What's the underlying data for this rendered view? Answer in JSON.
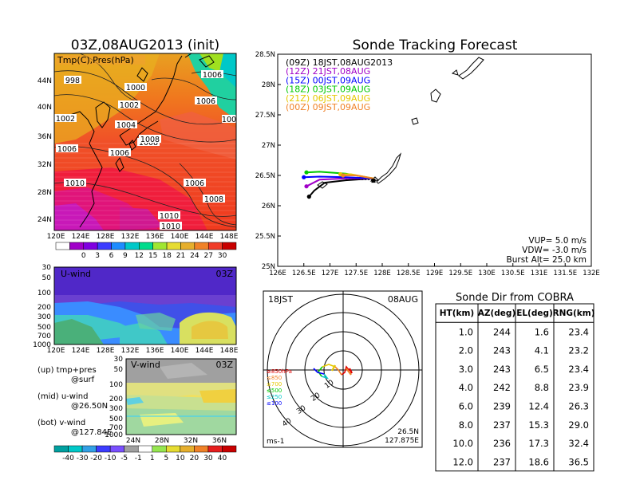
{
  "titles": {
    "left": "03Z,08AUG2013 (init)",
    "right": "Sonde Tracking Forecast"
  },
  "colors": {
    "track_09z": "#000000",
    "track_12z": "#a000c8",
    "track_15z": "#0000ff",
    "track_18z": "#00c800",
    "track_21z": "#e6c800",
    "track_00z": "#f08228",
    "land": "#000000"
  },
  "panel_map": {
    "label": "Tmp(C),Pres(hPa)",
    "lon_ticks": [
      "120E",
      "124E",
      "128E",
      "132E",
      "136E",
      "140E",
      "144E",
      "148E"
    ],
    "lat_ticks": [
      "44N",
      "40N",
      "36N",
      "32N",
      "28N",
      "24N"
    ],
    "isobar_labels": [
      "998",
      "1000",
      "1002",
      "1004",
      "1006",
      "1008",
      "1010",
      "1006",
      "1006",
      "100",
      "1002",
      "1006",
      "1008",
      "1010",
      "1006",
      "1008",
      "1010",
      "1010"
    ],
    "colorbar_ticks": [
      "0",
      "3",
      "6",
      "9",
      "12",
      "15",
      "18",
      "21",
      "24",
      "27",
      "30"
    ]
  },
  "panel_u": {
    "label": "U-wind",
    "time": "03Z",
    "y_ticks": [
      "30",
      "50",
      "100",
      "200",
      "300",
      "500",
      "700",
      "1000"
    ],
    "lon_ticks": [
      "120E",
      "124E",
      "128E",
      "132E",
      "136E",
      "140E",
      "144E",
      "148E"
    ]
  },
  "panel_v": {
    "label": "V-wind",
    "time": "03Z",
    "y_ticks": [
      "30",
      "50",
      "100",
      "200",
      "300",
      "500",
      "700",
      "1000"
    ],
    "lat_ticks": [
      "24N",
      "28N",
      "32N",
      "36N"
    ],
    "colorbar_ticks": [
      "-40",
      "-30",
      "-20",
      "-10",
      "-5",
      "-1",
      "1",
      "5",
      "10",
      "20",
      "30",
      "40"
    ]
  },
  "legend_left": {
    "line1a": "(up) tmp+pres",
    "line1b": "@surf",
    "line2a": "(mid) u-wind",
    "line2b": "@26.50N",
    "line3a": "(bot) v-wind",
    "line3b": "@127.84E"
  },
  "chart_data": {
    "type": "line",
    "title": "Sonde Tracking Forecast",
    "xlim": [
      126,
      132
    ],
    "ylim": [
      25,
      28.5
    ],
    "x_ticks": [
      "126E",
      "126.5E",
      "127E",
      "127.5E",
      "128E",
      "128.5E",
      "129E",
      "129.5E",
      "130E",
      "130.5E",
      "131E",
      "131.5E",
      "132E"
    ],
    "y_ticks": [
      "28.5N",
      "28N",
      "27.5N",
      "27N",
      "26.5N",
      "26N",
      "25.5N",
      "25N"
    ],
    "series": [
      {
        "name": "(09Z)  18JST,08AUG2013",
        "color": "#000000",
        "points": [
          [
            127.84,
            26.45
          ],
          [
            127.3,
            26.42
          ],
          [
            126.9,
            26.38
          ],
          [
            126.7,
            26.25
          ],
          [
            126.6,
            26.15
          ]
        ]
      },
      {
        "name": "(12Z)  21JST,08AUG",
        "color": "#a000c8",
        "points": [
          [
            127.84,
            26.45
          ],
          [
            127.3,
            26.45
          ],
          [
            126.8,
            26.43
          ],
          [
            126.55,
            26.32
          ]
        ]
      },
      {
        "name": "(15Z)  00JST,09AUG",
        "color": "#0000ff",
        "points": [
          [
            127.84,
            26.45
          ],
          [
            127.3,
            26.47
          ],
          [
            126.8,
            26.48
          ],
          [
            126.5,
            26.47
          ]
        ]
      },
      {
        "name": "(18Z)  03JST,09AUG",
        "color": "#00c800",
        "points": [
          [
            127.84,
            26.45
          ],
          [
            127.3,
            26.53
          ],
          [
            126.8,
            26.56
          ],
          [
            126.55,
            26.55
          ]
        ]
      },
      {
        "name": "(21Z)  06JST,09AUG",
        "color": "#e6c800",
        "points": [
          [
            127.84,
            26.45
          ],
          [
            127.4,
            26.52
          ],
          [
            127.2,
            26.52
          ]
        ]
      },
      {
        "name": "(00Z)  09JST,09AUG",
        "color": "#f08228",
        "points": [
          [
            127.84,
            26.45
          ],
          [
            127.5,
            26.5
          ],
          [
            127.25,
            26.5
          ]
        ]
      }
    ],
    "annotations": [
      "VUP= 5.0 m/s",
      "VDW= -3.0 m/s",
      "Burst Alt= 25.0 km"
    ]
  },
  "polar": {
    "time": "18JST",
    "date": "08AUG",
    "ring_labels": [
      "10",
      "20",
      "30",
      "40"
    ],
    "legend": [
      "≥850hPa",
      "≤850",
      "≤700",
      "≤500",
      "≤250",
      "≤100"
    ],
    "legend_colors": [
      "#e00000",
      "#f08228",
      "#e6c800",
      "#00c800",
      "#00c8c8",
      "#0000ff"
    ],
    "unit": "ms-1",
    "loc_lat": "26.5N",
    "loc_lon": "127.875E"
  },
  "table": {
    "title": "Sonde Dir from COBRA",
    "headers": [
      "HT(km)",
      "AZ(deg)",
      "EL(deg)",
      "RNG(km)"
    ],
    "rows": [
      [
        "1.0",
        "244",
        "1.6",
        "23.4"
      ],
      [
        "2.0",
        "243",
        "4.1",
        "23.2"
      ],
      [
        "3.0",
        "243",
        "6.5",
        "23.4"
      ],
      [
        "4.0",
        "242",
        "8.8",
        "23.9"
      ],
      [
        "6.0",
        "239",
        "12.4",
        "26.3"
      ],
      [
        "8.0",
        "237",
        "15.3",
        "29.0"
      ],
      [
        "10.0",
        "236",
        "17.3",
        "32.4"
      ],
      [
        "12.0",
        "237",
        "18.6",
        "36.5"
      ]
    ]
  }
}
